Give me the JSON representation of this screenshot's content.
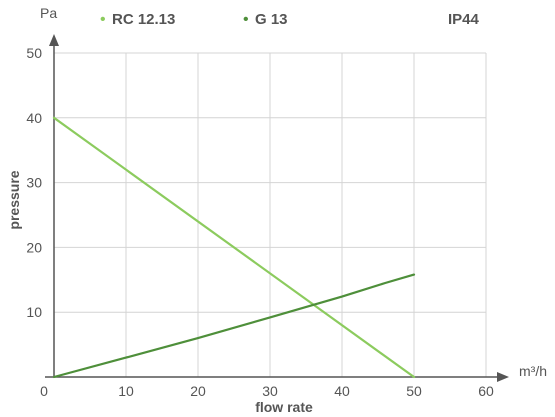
{
  "chart_data": {
    "type": "line",
    "unit_top": "Pa",
    "xlabel": "flow rate",
    "ylabel": "pressure",
    "x_unit": "m³/h",
    "badge": "IP44",
    "xlim": [
      0,
      60
    ],
    "ylim": [
      0,
      50
    ],
    "x_ticks": [
      0,
      10,
      20,
      30,
      40,
      50,
      60
    ],
    "y_ticks": [
      10,
      20,
      30,
      40,
      50
    ],
    "grid": true,
    "legend_position": "top",
    "series": [
      {
        "name": "RC 12.13",
        "color": "#8ccb5e",
        "x": [
          0,
          50
        ],
        "y": [
          40,
          0
        ]
      },
      {
        "name": "G 13",
        "color": "#4e8f3a",
        "x": [
          0,
          10,
          20,
          30,
          40,
          46,
          50
        ],
        "y": [
          0,
          3,
          6,
          9.2,
          12.4,
          14.5,
          15.8
        ]
      }
    ]
  }
}
